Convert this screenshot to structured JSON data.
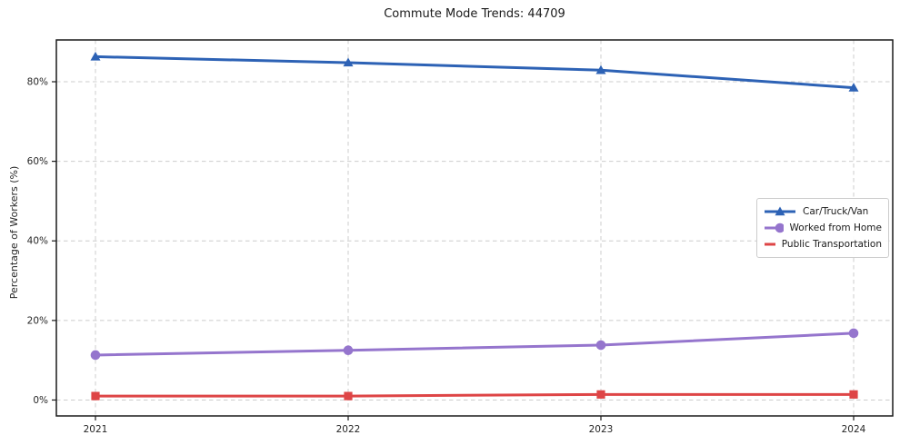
{
  "title": "Commute Mode Trends: 44709",
  "chart_data": {
    "type": "line",
    "title": "Commute Mode Trends: 44709",
    "categories": [
      "2021",
      "2022",
      "2023",
      "2024"
    ],
    "series": [
      {
        "name": "Car/Truck/Van",
        "values": [
          86.3,
          84.8,
          82.9,
          78.5
        ],
        "color": "#2d62b5",
        "marker": "triangle-marker"
      },
      {
        "name": "Worked from Home",
        "values": [
          11.3,
          12.5,
          13.8,
          16.8
        ],
        "color": "#9575cd",
        "marker": "circle-marker"
      },
      {
        "name": "Public Transportation",
        "values": [
          1.0,
          1.0,
          1.4,
          1.4
        ],
        "color": "#de4546",
        "marker": "square-marker"
      }
    ],
    "xlabel": "",
    "ylabel": "Percentage of Workers (%)",
    "ylim": [
      -4.0,
      90.5
    ],
    "yticks": [
      0,
      20,
      40,
      60,
      80
    ],
    "ytick_labels": [
      "0%",
      "20%",
      "40%",
      "60%",
      "80%"
    ],
    "grid": true,
    "grid_style": "dashed",
    "legend_position": "center-right"
  },
  "colors": {
    "background": "#ffffff",
    "grid": "#cccccc",
    "frame": "#1a1a1a",
    "tick_text": "#262626",
    "title_text": "#1a1a1a"
  }
}
